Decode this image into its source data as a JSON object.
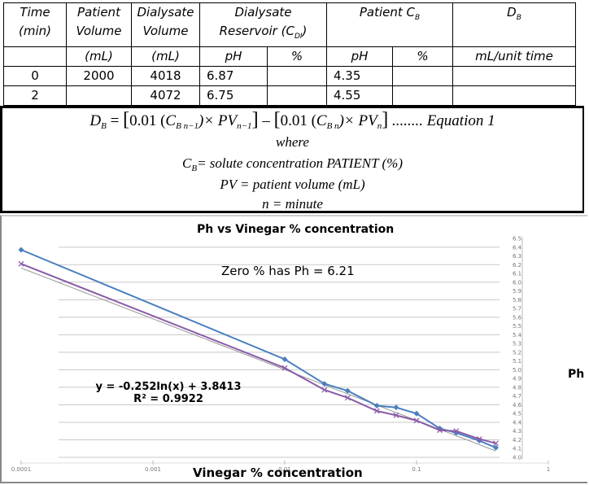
{
  "table": {
    "headers": {
      "time": "Time (min)",
      "time_l1": "Time",
      "time_l2": "(min)",
      "patient_volume_l1": "Patient",
      "patient_volume_l2": "Volume",
      "patient_volume_l3": "(mL)",
      "dialysate_volume_l1": "Dialysate",
      "dialysate_volume_l2": "Volume",
      "dialysate_volume_l3": "(mL)",
      "reservoir_l1": "Dialysate",
      "reservoir_l2": "Reservoir (C",
      "reservoir_sub": "DI",
      "reservoir_close": ")",
      "patient_cb": "Patient C",
      "patient_cb_sub": "B",
      "db": "D",
      "db_sub": "B",
      "sub_ph_1": "pH",
      "sub_pct_1": "%",
      "sub_ph_2": "pH",
      "sub_pct_2": "%",
      "sub_rate": "mL/unit time"
    },
    "rows": [
      {
        "time": "0",
        "patient_volume": "2000",
        "dialysate_volume": "4018",
        "reservoir_ph": "6.87",
        "reservoir_pct": "",
        "patient_ph": "4.35",
        "patient_pct": "",
        "db": ""
      },
      {
        "time": "2",
        "patient_volume": "",
        "dialysate_volume": "4072",
        "reservoir_ph": "6.75",
        "reservoir_pct": "",
        "patient_ph": "4.55",
        "patient_pct": "",
        "db": ""
      }
    ]
  },
  "equation": {
    "lhs": "D",
    "lhs_sub": "B",
    "equals": "=",
    "open1": "[",
    "coef1": "0.01 (",
    "c1": "C",
    "c1_sub": "B n−1",
    "times1": ")× PV",
    "pv1_sub": "n−1",
    "close1": "]",
    "minus": "–",
    "open2": "[",
    "coef2": "0.01 (",
    "c2": "C",
    "c2_sub": "B n",
    "times2": ")× PV",
    "pv2_sub": "n",
    "close2": "]",
    "label": "........  Equation   1",
    "where": "where",
    "def_cb": "C",
    "def_cb_sub": "B",
    "def_cb_text": "= solute concentration PATIENT (%)",
    "def_pv": "PV = patient volume  (mL)",
    "def_n": "n = minute"
  },
  "chart_data": {
    "type": "line",
    "title": "Ph vs Vinegar % concentration",
    "xlabel": "Vinegar % concentration",
    "ylabel": "Ph",
    "x_scale": "log",
    "xlim": [
      0.0001,
      1
    ],
    "ylim": [
      4.0,
      6.5
    ],
    "x_ticks": [
      "0.0001",
      "0.001",
      "0.01",
      "0.1",
      "1"
    ],
    "y_ticks": [
      "6.5",
      "6.4",
      "6.3",
      "6.2",
      "6.1",
      "6.0",
      "5.9",
      "5.8",
      "5.7",
      "5.6",
      "5.5",
      "5.4",
      "5.3",
      "5.2",
      "5.1",
      "5.0",
      "4.9",
      "4.8",
      "4.7",
      "4.6",
      "4.5",
      "4.4",
      "4.3",
      "4.2",
      "4.1",
      "4.0"
    ],
    "y_axis_position": "right",
    "grid": true,
    "legend": null,
    "annotation": "Zero %  has Ph = 6.21",
    "trendline": {
      "type": "logarithmic",
      "equation": "y = -0.252ln(x) + 3.8413",
      "r_squared": "R² = 0.9922",
      "color": "#999999"
    },
    "x": [
      0.0001,
      0.01,
      0.02,
      0.03,
      0.05,
      0.07,
      0.1,
      0.15,
      0.2,
      0.3,
      0.4
    ],
    "series": [
      {
        "name": "Series 1",
        "color": "#4a7ebf",
        "marker": "diamond",
        "values": [
          6.37,
          5.12,
          4.84,
          4.76,
          4.59,
          4.57,
          4.5,
          4.33,
          4.28,
          4.19,
          4.11
        ]
      },
      {
        "name": "Series 2",
        "color": "#8a5ca8",
        "marker": "x",
        "values": [
          6.21,
          5.02,
          4.77,
          4.68,
          4.53,
          4.48,
          4.42,
          4.31,
          4.3,
          4.21,
          4.16
        ]
      }
    ]
  }
}
